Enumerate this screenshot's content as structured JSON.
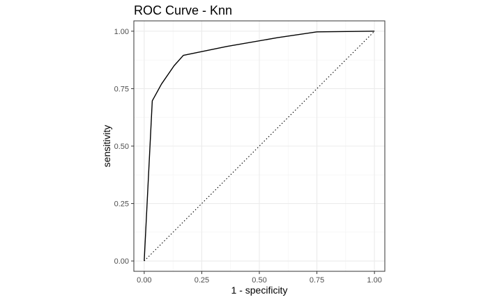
{
  "chart_data": {
    "type": "line",
    "title": "ROC Curve - Knn",
    "xlabel": "1 - specificity",
    "ylabel": "sensitivity",
    "xlim": [
      0,
      1
    ],
    "ylim": [
      0,
      1
    ],
    "x_ticks": [
      "0.00",
      "0.25",
      "0.50",
      "0.75",
      "1.00"
    ],
    "y_ticks": [
      "0.00",
      "0.25",
      "0.50",
      "0.75",
      "1.00"
    ],
    "grid": true,
    "legend": "none",
    "series": [
      {
        "style": "solid",
        "color": "#000000",
        "points": [
          [
            0.0,
            0.0
          ],
          [
            0.035,
            0.697
          ],
          [
            0.075,
            0.77
          ],
          [
            0.13,
            0.85
          ],
          [
            0.17,
            0.895
          ],
          [
            0.36,
            0.934
          ],
          [
            0.58,
            0.972
          ],
          [
            0.75,
            0.997
          ],
          [
            1.0,
            1.0
          ]
        ]
      },
      {
        "style": "dotted",
        "color": "#000000",
        "points": [
          [
            0,
            0
          ],
          [
            1,
            1
          ]
        ]
      }
    ]
  }
}
